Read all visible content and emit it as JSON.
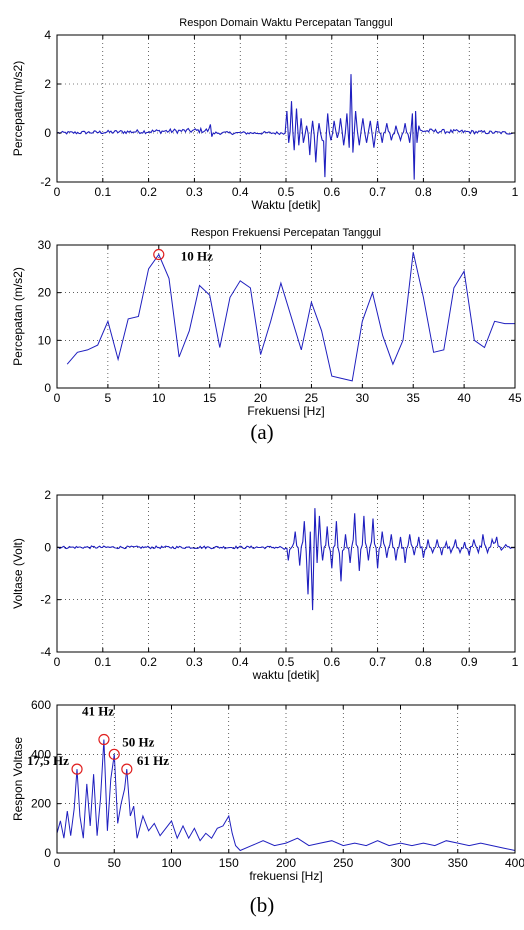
{
  "captions": {
    "a": "(a)",
    "b": "(b)"
  },
  "colors": {
    "line": "#1f1fbf",
    "marker": "#e02020",
    "grid": "#000000",
    "text": "#000000"
  },
  "chart_data": [
    {
      "type": "line",
      "title": "Respon Domain Waktu Percepatan Tanggul",
      "xlabel": "Waktu [detik]",
      "ylabel": "Percepatan(m/s2)",
      "xlim": [
        0,
        1
      ],
      "ylim": [
        -2,
        4
      ],
      "xticks": [
        0,
        0.1,
        0.2,
        0.3,
        0.4,
        0.5,
        0.6,
        0.7,
        0.8,
        0.9,
        1
      ],
      "xticklabels": [
        "0",
        "0.1",
        "0.2",
        "0.3",
        "0.4",
        "0.5",
        "0.6",
        "0.7",
        "0.8",
        "0.9",
        "1"
      ],
      "yticks": [
        -2,
        0,
        2,
        4
      ],
      "yticklabels": [
        "-2",
        "0",
        "2",
        "4"
      ],
      "grid": true,
      "series": [
        {
          "x": [
            0,
            0.335,
            0.338,
            0.341,
            0.498,
            0.502,
            0.506,
            0.512,
            0.518,
            0.523,
            0.528,
            0.533,
            0.538,
            0.545,
            0.552,
            0.558,
            0.565,
            0.572,
            0.579,
            0.585,
            0.591,
            0.598,
            0.605,
            0.612,
            0.619,
            0.626,
            0.633,
            0.638,
            0.642,
            0.646,
            0.652,
            0.66,
            0.668,
            0.676,
            0.684,
            0.692,
            0.7,
            0.71,
            0.72,
            0.73,
            0.74,
            0.75,
            0.76,
            0.77,
            0.776,
            0.78,
            0.783,
            0.786,
            0.79,
            1
          ],
          "y": [
            0,
            0.35,
            -0.15,
            0,
            0,
            0.9,
            -0.4,
            1.3,
            -0.7,
            1.0,
            -0.5,
            0.6,
            -0.4,
            0.3,
            -0.9,
            0.5,
            -1.2,
            0.4,
            -0.3,
            -1.8,
            0.8,
            -0.3,
            0.5,
            -0.2,
            0.6,
            -0.5,
            0.8,
            -0.6,
            2.4,
            -0.8,
            0.9,
            -0.5,
            0.6,
            -0.4,
            0.5,
            -0.6,
            0.5,
            -0.4,
            0.4,
            -0.3,
            0.3,
            -0.3,
            0.4,
            -0.4,
            0.8,
            -1.9,
            0.9,
            -0.4,
            0.3,
            0
          ]
        }
      ],
      "noise_amplitude": 0.06
    },
    {
      "type": "line",
      "title": "Respon Frekuensi Percepatan Tanggul",
      "xlabel": "Frekuensi [Hz]",
      "ylabel": "Percepatan (m/s2)",
      "xlim": [
        0,
        45
      ],
      "ylim": [
        0,
        30
      ],
      "xticks": [
        0,
        5,
        10,
        15,
        20,
        25,
        30,
        35,
        40,
        45
      ],
      "xticklabels": [
        "0",
        "5",
        "10",
        "15",
        "20",
        "25",
        "30",
        "35",
        "40",
        "45"
      ],
      "yticks": [
        0,
        10,
        20,
        30
      ],
      "yticklabels": [
        "0",
        "10",
        "20",
        "30"
      ],
      "grid": true,
      "series": [
        {
          "x": [
            1,
            2,
            3,
            4,
            5,
            6,
            7,
            8,
            9,
            10,
            11,
            12,
            13,
            14,
            15,
            16,
            17,
            18,
            19,
            20,
            21,
            22,
            23,
            24,
            25,
            26,
            27,
            28,
            29,
            30,
            31,
            32,
            33,
            34,
            35,
            36,
            37,
            38,
            39,
            40,
            41,
            42,
            43,
            44,
            45
          ],
          "y": [
            5,
            7.5,
            8,
            9,
            14,
            6,
            14.5,
            15,
            25,
            28,
            23,
            6.5,
            12,
            21.5,
            19.5,
            8.5,
            19,
            22.5,
            21,
            7,
            14,
            22,
            15,
            8,
            18,
            12,
            2.5,
            2,
            1.5,
            14,
            20,
            11,
            5,
            10,
            28.5,
            19,
            7.5,
            8,
            21,
            24.5,
            10,
            8.5,
            14,
            13.5,
            13.5
          ]
        }
      ],
      "markers": [
        {
          "x": 10,
          "y": 28
        }
      ],
      "annotations": [
        {
          "x": 10,
          "y": 28,
          "text": "10 Hz"
        }
      ]
    },
    {
      "type": "line",
      "title": "",
      "xlabel": "waktu [detik]",
      "ylabel": "Voltase (Volt)",
      "xlim": [
        0,
        1
      ],
      "ylim": [
        -4,
        2
      ],
      "xticks": [
        0,
        0.1,
        0.2,
        0.3,
        0.4,
        0.5,
        0.6,
        0.7,
        0.8,
        0.9,
        1
      ],
      "xticklabels": [
        "0",
        "0.1",
        "0.2",
        "0.3",
        "0.4",
        "0.5",
        "0.6",
        "0.7",
        "0.8",
        "0.9",
        "1"
      ],
      "yticks": [
        -4,
        -2,
        0,
        2
      ],
      "yticklabels": [
        "-4",
        "-2",
        "0",
        "2"
      ],
      "grid": true,
      "series": [
        {
          "x": [
            0,
            0.49,
            0.505,
            0.52,
            0.53,
            0.54,
            0.548,
            0.553,
            0.558,
            0.563,
            0.568,
            0.573,
            0.58,
            0.59,
            0.6,
            0.61,
            0.62,
            0.63,
            0.64,
            0.65,
            0.66,
            0.67,
            0.68,
            0.69,
            0.7,
            0.71,
            0.72,
            0.73,
            0.74,
            0.75,
            0.76,
            0.77,
            0.78,
            0.79,
            0.8,
            0.81,
            0.82,
            0.83,
            0.84,
            0.85,
            0.86,
            0.87,
            0.88,
            0.89,
            0.9,
            0.91,
            0.92,
            0.93,
            0.94,
            0.95,
            0.96,
            0.97,
            0.98,
            1
          ],
          "y": [
            0,
            0,
            -0.5,
            0.6,
            -0.7,
            1.0,
            -1.8,
            0.6,
            -2.4,
            1.5,
            -0.6,
            1.2,
            -0.5,
            0.8,
            -0.8,
            1.0,
            -1.3,
            0.5,
            -0.6,
            1.3,
            -0.9,
            1.2,
            -0.5,
            1.1,
            -0.8,
            0.6,
            -0.4,
            0.5,
            -0.5,
            0.4,
            -0.6,
            0.5,
            -0.3,
            0.4,
            -0.4,
            0.3,
            -0.2,
            0.3,
            -0.3,
            0.2,
            -0.2,
            0.3,
            -0.2,
            0.2,
            -0.3,
            0.3,
            -0.2,
            0.5,
            -0.2,
            0.3,
            0.4,
            -0.1,
            0.1,
            0
          ]
        }
      ],
      "noise_amplitude": 0.05
    },
    {
      "type": "line",
      "title": "",
      "xlabel": "frekuensi [Hz]",
      "ylabel": "Respon Voltase",
      "xlim": [
        0,
        400
      ],
      "ylim": [
        0,
        600
      ],
      "xticks": [
        0,
        50,
        100,
        150,
        200,
        250,
        300,
        350,
        400
      ],
      "xticklabels": [
        "0",
        "50",
        "100",
        "150",
        "200",
        "250",
        "300",
        "350",
        "400"
      ],
      "yticks": [
        0,
        200,
        400,
        600
      ],
      "yticklabels": [
        "0",
        "200",
        "400",
        "600"
      ],
      "grid": true,
      "series": [
        {
          "x": [
            0,
            3,
            6,
            9,
            12,
            15,
            17.5,
            20,
            23,
            26,
            29,
            32,
            35,
            38,
            41,
            44,
            47,
            50,
            53,
            56,
            59,
            61,
            64,
            67,
            70,
            75,
            80,
            85,
            90,
            95,
            100,
            105,
            110,
            115,
            120,
            125,
            130,
            135,
            140,
            145,
            150,
            153,
            156,
            160,
            170,
            180,
            190,
            200,
            210,
            220,
            230,
            240,
            250,
            260,
            270,
            280,
            290,
            300,
            310,
            320,
            330,
            340,
            350,
            360,
            370,
            380,
            390,
            400
          ],
          "y": [
            80,
            130,
            60,
            170,
            70,
            180,
            340,
            150,
            60,
            280,
            110,
            320,
            70,
            220,
            460,
            90,
            300,
            400,
            120,
            200,
            260,
            340,
            150,
            190,
            60,
            150,
            90,
            120,
            70,
            100,
            130,
            60,
            110,
            60,
            100,
            50,
            80,
            60,
            100,
            110,
            150,
            80,
            30,
            10,
            30,
            50,
            30,
            40,
            60,
            30,
            40,
            50,
            30,
            40,
            30,
            50,
            30,
            40,
            30,
            40,
            30,
            50,
            40,
            30,
            40,
            30,
            20,
            10
          ]
        }
      ],
      "markers": [
        {
          "x": 17.5,
          "y": 340
        },
        {
          "x": 41,
          "y": 460
        },
        {
          "x": 50,
          "y": 400
        },
        {
          "x": 61,
          "y": 340
        }
      ],
      "annotations": [
        {
          "x": 17.5,
          "y": 340,
          "text": "17,5 Hz"
        },
        {
          "x": 41,
          "y": 460,
          "text": "41 Hz"
        },
        {
          "x": 50,
          "y": 400,
          "text": "50 Hz"
        },
        {
          "x": 61,
          "y": 340,
          "text": "61 Hz"
        }
      ]
    }
  ]
}
